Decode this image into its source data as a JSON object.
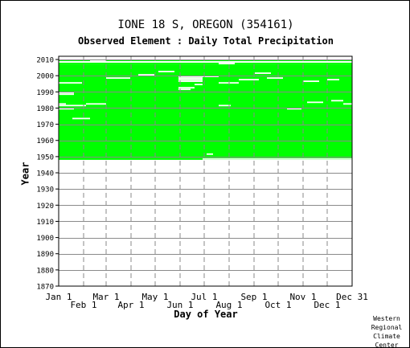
{
  "header": {
    "title": "IONE 18 S, OREGON   (354161)",
    "subtitle": "Observed Element : Daily Total Precipitation"
  },
  "footer": {
    "credit": "Western\nRegional\nClimate\nCenter"
  },
  "chart_data": {
    "type": "heatmap",
    "title": "IONE 18 S, OREGON   (354161)",
    "subtitle": "Observed Element : Daily Total Precipitation",
    "xlabel": "Day of Year",
    "ylabel": "Year",
    "xlim": [
      1,
      366
    ],
    "ylim": [
      1870,
      2012
    ],
    "grid": true,
    "color": "#00ff00",
    "x_ticks_upper": [
      {
        "label": "Jan 1",
        "day": 1
      },
      {
        "label": "Mar 1",
        "day": 60
      },
      {
        "label": "May 1",
        "day": 121
      },
      {
        "label": "Jul 1",
        "day": 182
      },
      {
        "label": "Sep 1",
        "day": 244
      },
      {
        "label": "Nov 1",
        "day": 305
      },
      {
        "label": "Dec 31",
        "day": 366
      }
    ],
    "x_ticks_lower": [
      {
        "label": "Feb 1",
        "day": 32
      },
      {
        "label": "Apr 1",
        "day": 91
      },
      {
        "label": "Jun 1",
        "day": 152
      },
      {
        "label": "Aug 1",
        "day": 213
      },
      {
        "label": "Oct 1",
        "day": 274
      },
      {
        "label": "Dec 1",
        "day": 335
      }
    ],
    "y_ticks": [
      1870,
      1880,
      1890,
      1900,
      1910,
      1920,
      1930,
      1940,
      1950,
      1960,
      1970,
      1980,
      1990,
      2000,
      2010
    ],
    "coverage": [
      {
        "from_year": 1948,
        "to_year": 2006,
        "from_day": 1,
        "to_day": 366
      },
      {
        "from_year": 2007,
        "to_year": 2007,
        "from_day": 1,
        "to_day": 200
      },
      {
        "from_year": 2007,
        "to_year": 2007,
        "from_day": 220,
        "to_day": 366
      },
      {
        "from_year": 2009,
        "to_year": 2009,
        "from_day": 1,
        "to_day": 40
      },
      {
        "from_year": 2009,
        "to_year": 2009,
        "from_day": 60,
        "to_day": 366
      }
    ],
    "gaps": [
      {
        "year": 1948,
        "from_day": 180,
        "to_day": 366
      },
      {
        "year": 1951,
        "from_day": 185,
        "to_day": 193
      },
      {
        "year": 1973,
        "from_day": 18,
        "to_day": 40
      },
      {
        "year": 1979,
        "from_day": 1,
        "to_day": 20
      },
      {
        "year": 1979,
        "from_day": 285,
        "to_day": 303
      },
      {
        "year": 1981,
        "from_day": 1,
        "to_day": 35
      },
      {
        "year": 1981,
        "from_day": 200,
        "to_day": 215
      },
      {
        "year": 1982,
        "from_day": 1,
        "to_day": 10
      },
      {
        "year": 1982,
        "from_day": 35,
        "to_day": 60
      },
      {
        "year": 1982,
        "from_day": 355,
        "to_day": 366
      },
      {
        "year": 1983,
        "from_day": 310,
        "to_day": 330
      },
      {
        "year": 1984,
        "from_day": 340,
        "to_day": 355
      },
      {
        "year": 1988,
        "from_day": 1,
        "to_day": 20
      },
      {
        "year": 1989,
        "from_day": 1,
        "to_day": 20
      },
      {
        "year": 1991,
        "from_day": 150,
        "to_day": 165
      },
      {
        "year": 1992,
        "from_day": 150,
        "to_day": 170
      },
      {
        "year": 1994,
        "from_day": 170,
        "to_day": 180
      },
      {
        "year": 1995,
        "from_day": 1,
        "to_day": 30
      },
      {
        "year": 1995,
        "from_day": 200,
        "to_day": 225
      },
      {
        "year": 1996,
        "from_day": 150,
        "to_day": 180
      },
      {
        "year": 1996,
        "from_day": 305,
        "to_day": 325
      },
      {
        "year": 1997,
        "from_day": 150,
        "to_day": 180
      },
      {
        "year": 1997,
        "from_day": 225,
        "to_day": 250
      },
      {
        "year": 1997,
        "from_day": 335,
        "to_day": 350
      },
      {
        "year": 1998,
        "from_day": 150,
        "to_day": 180
      },
      {
        "year": 1998,
        "from_day": 60,
        "to_day": 90
      },
      {
        "year": 1998,
        "from_day": 260,
        "to_day": 280
      },
      {
        "year": 1999,
        "from_day": 150,
        "to_day": 180
      },
      {
        "year": 1999,
        "from_day": 180,
        "to_day": 200
      },
      {
        "year": 2000,
        "from_day": 100,
        "to_day": 120
      },
      {
        "year": 2001,
        "from_day": 245,
        "to_day": 265
      },
      {
        "year": 2002,
        "from_day": 125,
        "to_day": 145
      }
    ]
  }
}
